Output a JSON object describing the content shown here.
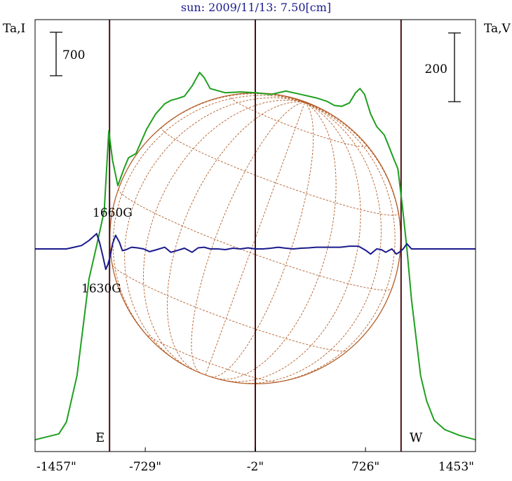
{
  "chart_data": {
    "type": "line",
    "title": "sun: 2009/11/13: 7.50[cm]",
    "ylabel_left": "Ta,I",
    "ylabel_right": "Ta,V",
    "xlim": [
      -1457,
      1453
    ],
    "x_ticks": [
      {
        "value": -1457,
        "label": "-1457\""
      },
      {
        "value": -729,
        "label": "-729\""
      },
      {
        "value": -2,
        "label": "-2\""
      },
      {
        "value": 726,
        "label": "726\""
      },
      {
        "value": 1453,
        "label": "1453\""
      }
    ],
    "limb_markers": [
      {
        "x": -965,
        "label": "E"
      },
      {
        "x": -2,
        "label": ""
      },
      {
        "x": 961,
        "label": "W"
      }
    ],
    "scale_bars": [
      {
        "side": "left",
        "label": "700",
        "series": "Ta,I"
      },
      {
        "side": "right",
        "label": "200",
        "series": "Ta,V"
      }
    ],
    "annotations": [
      {
        "text": "1660G",
        "x": -965,
        "on": "Ta,V peak"
      },
      {
        "text": "1630G",
        "x": -965,
        "on": "Ta,V trough"
      }
    ],
    "disk_grid": {
      "color": "#b45f2a",
      "radius_arcsec": 961
    },
    "series": [
      {
        "name": "Ta,I",
        "color": "#1f9f1f",
        "points": [
          [
            -1457,
            40
          ],
          [
            -1300,
            110
          ],
          [
            -1250,
            250
          ],
          [
            -1180,
            800
          ],
          [
            -1100,
            1950
          ],
          [
            -1050,
            2340
          ],
          [
            -1000,
            2750
          ],
          [
            -970,
            3700
          ],
          [
            -945,
            3350
          ],
          [
            -910,
            3050
          ],
          [
            -870,
            3250
          ],
          [
            -840,
            3380
          ],
          [
            -790,
            3430
          ],
          [
            -720,
            3720
          ],
          [
            -660,
            3900
          ],
          [
            -600,
            4020
          ],
          [
            -560,
            4060
          ],
          [
            -520,
            4080
          ],
          [
            -470,
            4110
          ],
          [
            -420,
            4230
          ],
          [
            -370,
            4390
          ],
          [
            -340,
            4330
          ],
          [
            -300,
            4200
          ],
          [
            -200,
            4150
          ],
          [
            -100,
            4160
          ],
          [
            0,
            4150
          ],
          [
            100,
            4130
          ],
          [
            200,
            4170
          ],
          [
            300,
            4130
          ],
          [
            400,
            4090
          ],
          [
            470,
            4050
          ],
          [
            520,
            4000
          ],
          [
            570,
            3990
          ],
          [
            620,
            4030
          ],
          [
            660,
            4150
          ],
          [
            690,
            4200
          ],
          [
            720,
            4130
          ],
          [
            760,
            3900
          ],
          [
            800,
            3750
          ],
          [
            850,
            3650
          ],
          [
            880,
            3520
          ],
          [
            910,
            3380
          ],
          [
            940,
            3250
          ],
          [
            970,
            2800
          ],
          [
            1000,
            2300
          ],
          [
            1030,
            1700
          ],
          [
            1060,
            1250
          ],
          [
            1090,
            800
          ],
          [
            1130,
            500
          ],
          [
            1180,
            270
          ],
          [
            1250,
            160
          ],
          [
            1350,
            90
          ],
          [
            1453,
            40
          ]
        ]
      },
      {
        "name": "Ta,V",
        "color": "#1a1a8c",
        "points": [
          [
            -1457,
            0
          ],
          [
            -1250,
            0
          ],
          [
            -1200,
            5
          ],
          [
            -1150,
            10
          ],
          [
            -1100,
            25
          ],
          [
            -1050,
            45
          ],
          [
            -1030,
            18
          ],
          [
            -1010,
            -20
          ],
          [
            -990,
            -60
          ],
          [
            -975,
            -45
          ],
          [
            -960,
            -20
          ],
          [
            -945,
            15
          ],
          [
            -925,
            40
          ],
          [
            -900,
            20
          ],
          [
            -880,
            -5
          ],
          [
            -860,
            -3
          ],
          [
            -820,
            5
          ],
          [
            -780,
            3
          ],
          [
            -740,
            0
          ],
          [
            -700,
            -8
          ],
          [
            -660,
            -3
          ],
          [
            -600,
            5
          ],
          [
            -560,
            -10
          ],
          [
            -520,
            -5
          ],
          [
            -470,
            2
          ],
          [
            -420,
            -10
          ],
          [
            -380,
            3
          ],
          [
            -340,
            5
          ],
          [
            -300,
            0
          ],
          [
            -250,
            0
          ],
          [
            -200,
            -2
          ],
          [
            -150,
            2
          ],
          [
            -100,
            0
          ],
          [
            -50,
            3
          ],
          [
            0,
            0
          ],
          [
            50,
            0
          ],
          [
            100,
            2
          ],
          [
            150,
            5
          ],
          [
            200,
            2
          ],
          [
            250,
            0
          ],
          [
            300,
            2
          ],
          [
            350,
            3
          ],
          [
            400,
            5
          ],
          [
            450,
            5
          ],
          [
            500,
            5
          ],
          [
            560,
            5
          ],
          [
            620,
            8
          ],
          [
            680,
            8
          ],
          [
            730,
            -5
          ],
          [
            760,
            -15
          ],
          [
            800,
            0
          ],
          [
            830,
            -2
          ],
          [
            860,
            -10
          ],
          [
            900,
            0
          ],
          [
            930,
            -15
          ],
          [
            955,
            -8
          ],
          [
            975,
            0
          ],
          [
            1000,
            15
          ],
          [
            1030,
            0
          ],
          [
            1080,
            0
          ],
          [
            1130,
            0
          ],
          [
            1200,
            0
          ],
          [
            1300,
            0
          ],
          [
            1453,
            0
          ]
        ]
      }
    ]
  }
}
